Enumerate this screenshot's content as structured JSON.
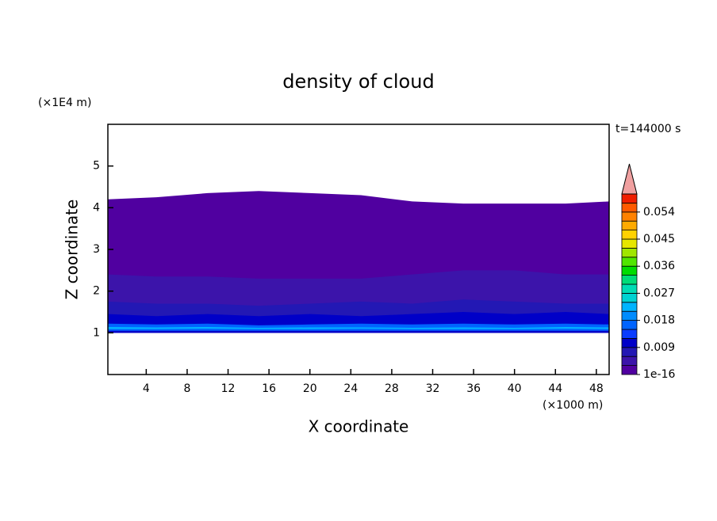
{
  "chart_data": {
    "type": "contour",
    "title": "density of cloud",
    "time_label": "t=144000 s",
    "x_label": "X coordinate",
    "x_unit": "(×1000 m)",
    "y_label": "Z coordinate",
    "y_unit": "(×1E4 m)",
    "xlim": [
      0.25,
      49.25
    ],
    "xticks": [
      4,
      8,
      12,
      16,
      20,
      24,
      28,
      32,
      36,
      40,
      44,
      48
    ],
    "ylim": [
      0,
      6
    ],
    "yticks": [
      1,
      2,
      3,
      4,
      5
    ],
    "x": [
      0.25,
      5,
      10,
      15,
      20,
      25,
      30,
      35,
      40,
      45,
      49.25
    ],
    "layers": [
      {
        "value": 0.0015,
        "top": [
          4.2,
          4.25,
          4.35,
          4.4,
          4.35,
          4.3,
          4.15,
          4.1,
          4.1,
          4.1,
          4.15
        ],
        "bottom": [
          1.0,
          1.0,
          1.0,
          1.0,
          1.0,
          1.0,
          1.0,
          1.0,
          1.0,
          1.0,
          1.0
        ]
      },
      {
        "value": 0.0045,
        "top": [
          2.4,
          2.35,
          2.35,
          2.3,
          2.3,
          2.3,
          2.4,
          2.5,
          2.5,
          2.4,
          2.4
        ],
        "bottom": [
          1.0,
          1.0,
          1.0,
          1.0,
          1.0,
          1.0,
          1.0,
          1.0,
          1.0,
          1.0,
          1.0
        ]
      },
      {
        "value": 0.0075,
        "top": [
          1.75,
          1.7,
          1.7,
          1.65,
          1.7,
          1.75,
          1.7,
          1.8,
          1.75,
          1.7,
          1.7
        ],
        "bottom": [
          1.0,
          1.0,
          1.0,
          1.0,
          1.0,
          1.0,
          1.0,
          1.0,
          1.0,
          1.0,
          1.0
        ]
      },
      {
        "value": 0.0105,
        "top": [
          1.45,
          1.4,
          1.45,
          1.4,
          1.45,
          1.4,
          1.45,
          1.5,
          1.45,
          1.5,
          1.45
        ],
        "bottom": [
          1.0,
          1.0,
          1.0,
          1.0,
          1.0,
          1.0,
          1.0,
          1.0,
          1.0,
          1.0,
          1.0
        ]
      },
      {
        "value": 0.0165,
        "top": [
          1.22,
          1.2,
          1.22,
          1.18,
          1.2,
          1.22,
          1.2,
          1.22,
          1.2,
          1.22,
          1.2
        ],
        "bottom": [
          1.05,
          1.05,
          1.05,
          1.05,
          1.05,
          1.05,
          1.05,
          1.05,
          1.05,
          1.05,
          1.05
        ]
      },
      {
        "value": 0.0225,
        "top": [
          1.14,
          1.13,
          1.14,
          1.12,
          1.13,
          1.13,
          1.12,
          1.13,
          1.12,
          1.14,
          1.13
        ],
        "bottom": [
          1.09,
          1.09,
          1.1,
          1.09,
          1.09,
          1.1,
          1.09,
          1.09,
          1.09,
          1.1,
          1.09
        ]
      }
    ],
    "colorbar": {
      "levels": [
        1e-16,
        0.003,
        0.006,
        0.009,
        0.012,
        0.015,
        0.018,
        0.021,
        0.024,
        0.027,
        0.03,
        0.033,
        0.036,
        0.039,
        0.042,
        0.045,
        0.048,
        0.051,
        0.054,
        0.057,
        0.06
      ],
      "colors": [
        "#5000a0",
        "#3c14aa",
        "#2318b4",
        "#0000c8",
        "#0a3cff",
        "#0064ff",
        "#008cff",
        "#00b4ff",
        "#00d2d2",
        "#00dcb4",
        "#00dc78",
        "#00dc00",
        "#50e600",
        "#a0e600",
        "#e6e600",
        "#ffd200",
        "#ffaa00",
        "#ff8200",
        "#ff5a00",
        "#f01e00"
      ],
      "over_color": "#f0a0a0",
      "ticks": [
        1e-16,
        0.009,
        0.018,
        0.027,
        0.036,
        0.045,
        0.054
      ]
    }
  }
}
